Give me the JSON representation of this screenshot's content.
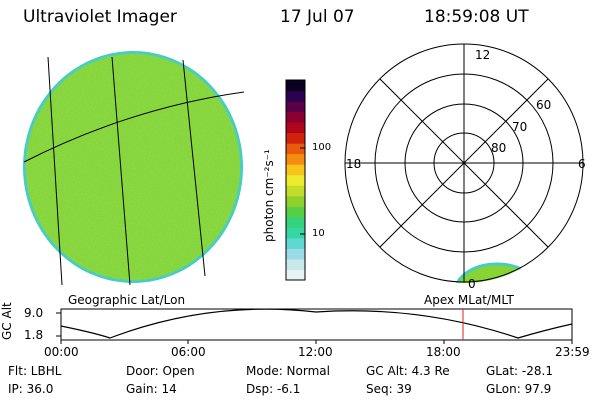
{
  "header": {
    "title": "Ultraviolet Imager",
    "date": "17 Jul 07",
    "time": "18:59:08 UT"
  },
  "colorbar": {
    "unit_label": "photon cm⁻²s⁻¹",
    "tick_100": "100",
    "tick_10": "10",
    "colors": [
      "#e8f4f4",
      "#c8e8ec",
      "#9adce6",
      "#5ed8d0",
      "#36d6a4",
      "#34d27c",
      "#56cf44",
      "#8ed02c",
      "#c4dd2a",
      "#ecec2c",
      "#f7c51b",
      "#f58d10",
      "#e85a0c",
      "#d0220d",
      "#b0061c",
      "#8a0030",
      "#5a0048",
      "#2c0050",
      "#0a0020"
    ]
  },
  "geo_panel": {
    "label": "Geographic Lat/Lon",
    "image_fill": "#86d436",
    "edge_fill": "#46ccc0"
  },
  "polar_panel": {
    "label": "Apex MLat/MLT",
    "mlt_top": "12",
    "mlt_left": "18",
    "mlt_right": "6",
    "mlt_bottom": "0",
    "lat_60": "60",
    "lat_70": "70",
    "lat_80": "80"
  },
  "altitude_plot": {
    "ylabel": "GC Alt",
    "y_top": "9.0",
    "y_bottom": "1.8",
    "x_ticks": [
      "00:00",
      "06:00",
      "12:00",
      "18:00",
      "23:59"
    ],
    "marker_color": "#e02020"
  },
  "status": {
    "filter": "Flt: LBHL",
    "ip": "IP: 36.0",
    "door": "Door: Open",
    "gain": "Gain: 14",
    "mode": "Mode: Normal",
    "dsp": "Dsp:    -6.1",
    "gc_alt": "GC Alt: 4.3 Re",
    "seq": "Seq: 39",
    "glat": "GLat:  -28.1",
    "glon": "GLon:  97.9"
  }
}
